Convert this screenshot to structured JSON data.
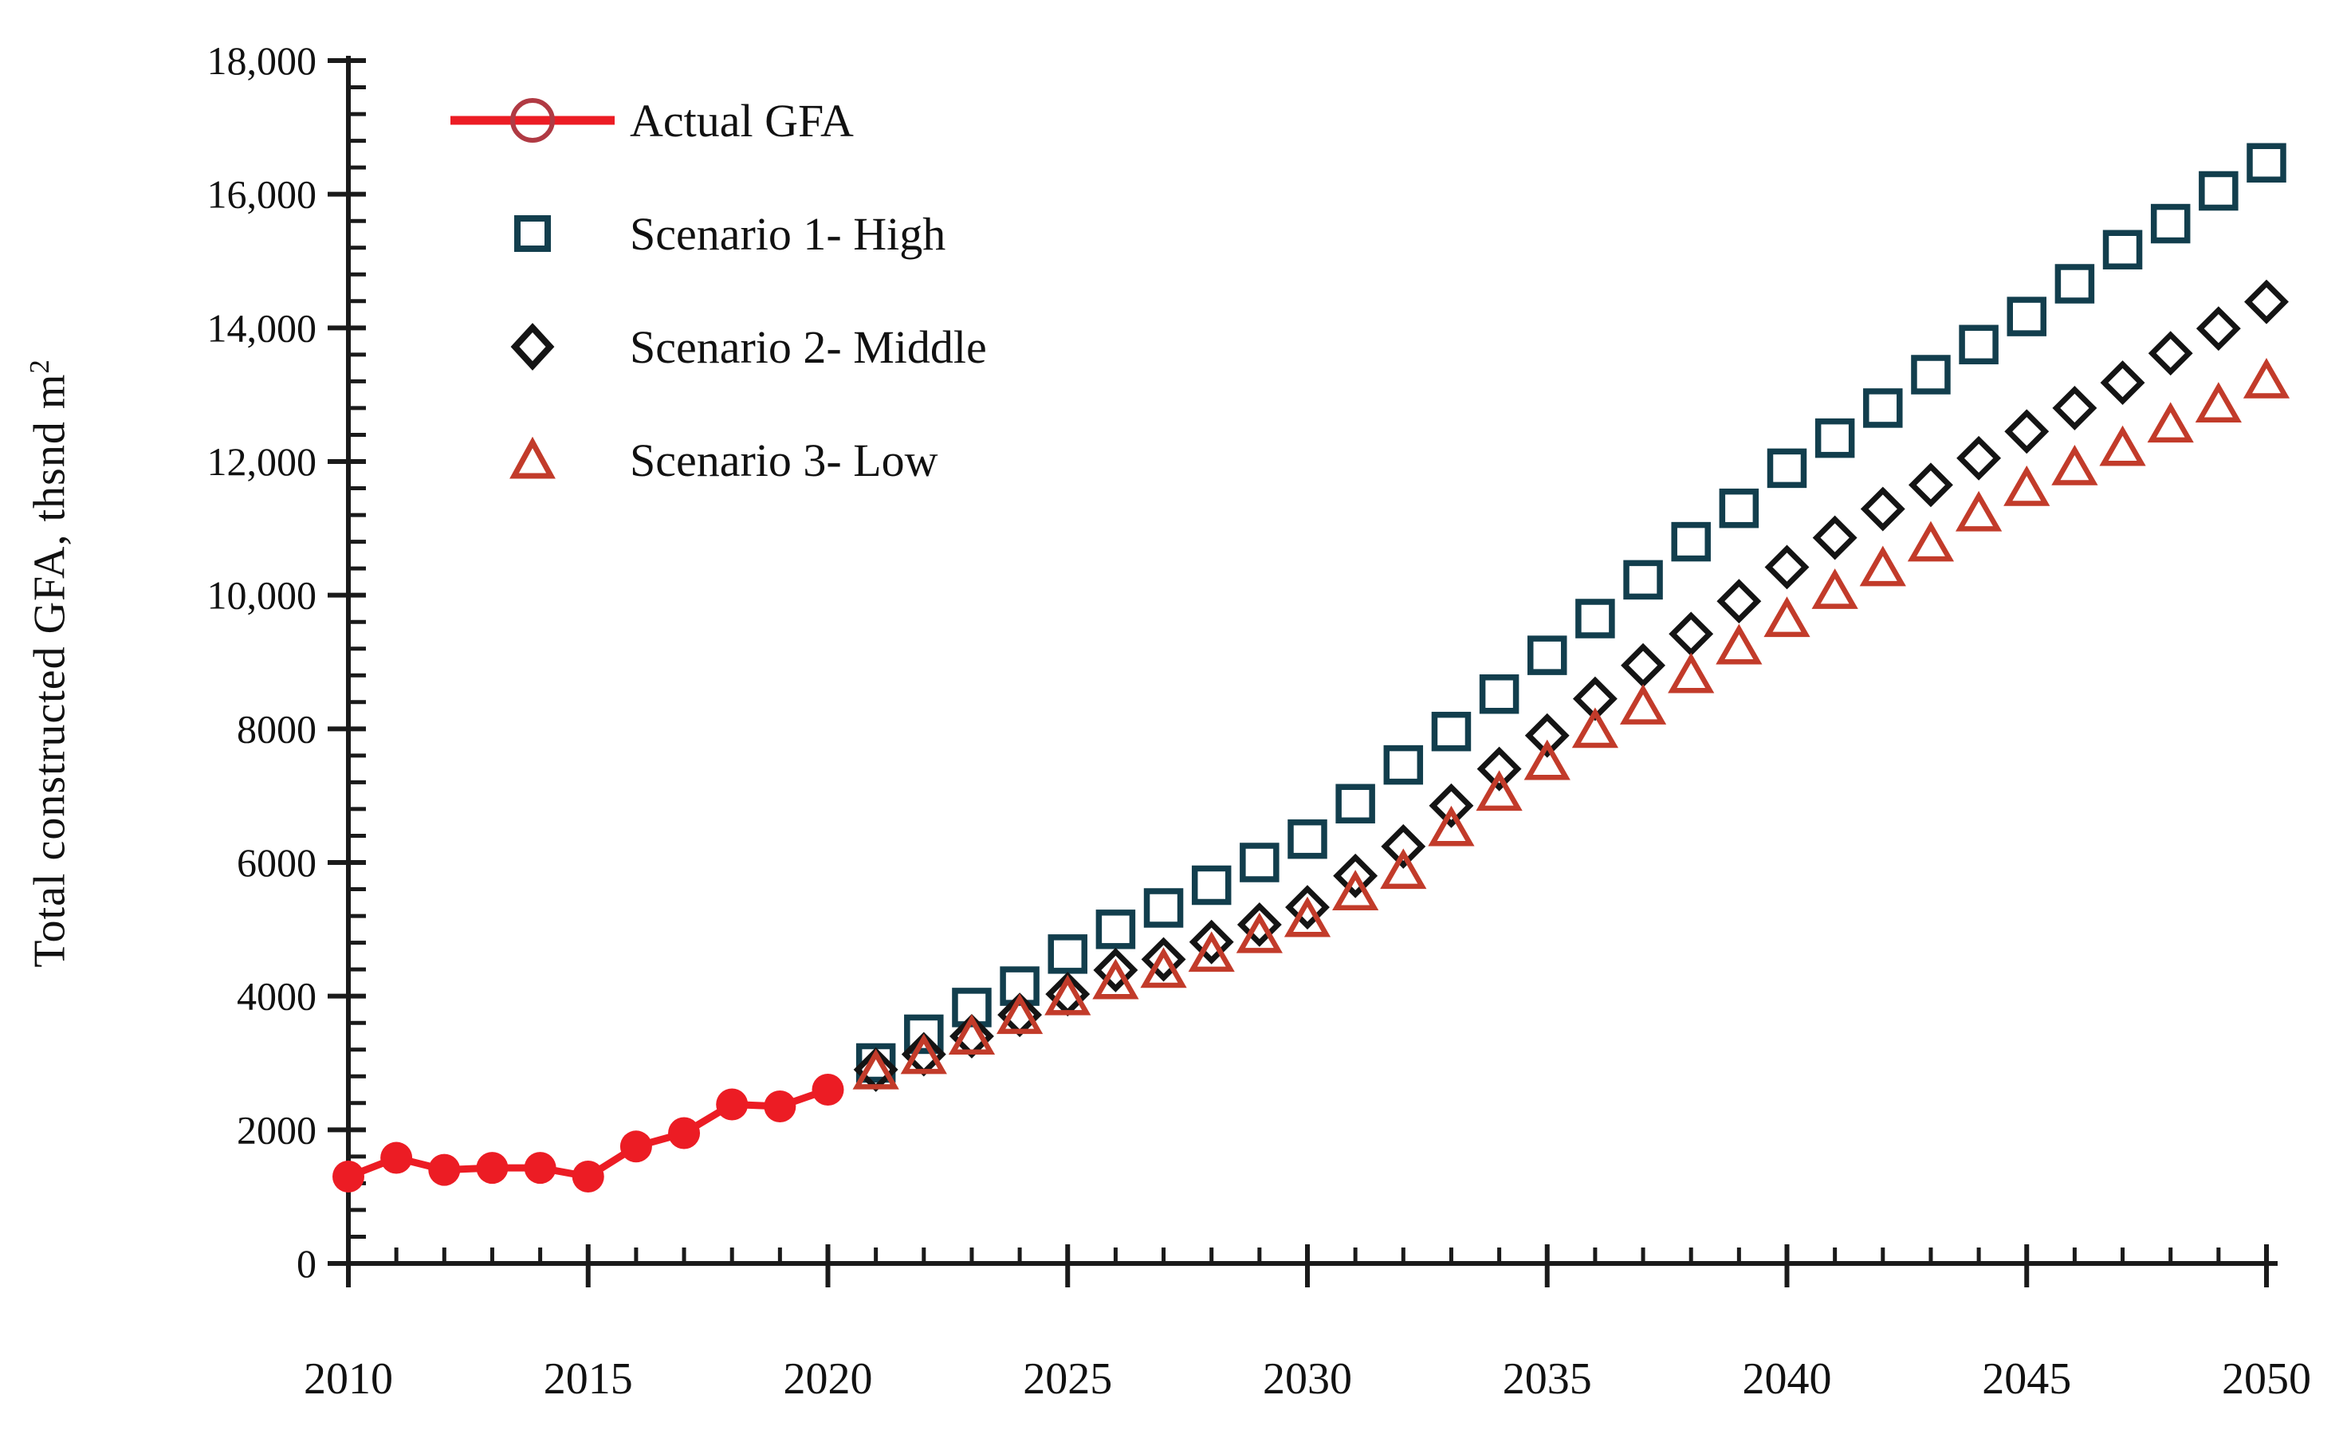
{
  "figure": {
    "ylabel_text": "Total constructed GFA, thsnd m",
    "ylabel_sup": "2",
    "background": "#ffffff",
    "legend": [
      {
        "label": "Actual GFA",
        "marker": "line-circle-icon",
        "color": "#ec1c24",
        "edge": "#b03a43"
      },
      {
        "label": "Scenario 1- High",
        "marker": "square-icon",
        "color": "#123e4d"
      },
      {
        "label": "Scenario 2- Middle",
        "marker": "diamond-icon",
        "color": "#141414"
      },
      {
        "label": "Scenario 3- Low",
        "marker": "triangle-icon",
        "color": "#c23b2a"
      }
    ]
  },
  "chart_data": {
    "type": "scatter",
    "title": "",
    "xlabel": "",
    "ylabel": "Total constructed GFA, thsnd m²",
    "xlim": [
      2010,
      2050
    ],
    "ylim": [
      0,
      18000
    ],
    "grid": false,
    "legend_position": "upper-left-inside",
    "x_major_ticks": [
      2010,
      2015,
      2020,
      2025,
      2030,
      2035,
      2040,
      2045,
      2050
    ],
    "x_major_labels": [
      "2010",
      "2015",
      "2020",
      "2025",
      "2030",
      "2035",
      "2040",
      "2045",
      "2050"
    ],
    "x_minor_step": 1,
    "y_major_ticks": [
      0,
      2000,
      4000,
      6000,
      8000,
      10000,
      12000,
      14000,
      16000,
      18000
    ],
    "y_major_labels": [
      "0",
      "2000",
      "4000",
      "6000",
      "8000",
      "10,000",
      "12,000",
      "14,000",
      "16,000",
      "18,000"
    ],
    "y_minor_step": 400,
    "series": [
      {
        "name": "Actual GFA",
        "type": "line+markers",
        "marker": "circle",
        "color": "#ec1c24",
        "x": [
          2010,
          2011,
          2012,
          2013,
          2014,
          2015,
          2016,
          2017,
          2018,
          2019,
          2020
        ],
        "values": [
          1300,
          1580,
          1400,
          1430,
          1430,
          1300,
          1750,
          1950,
          2380,
          2350,
          2600
        ]
      },
      {
        "name": "Scenario 1- High",
        "type": "markers",
        "marker": "square",
        "color": "#123e4d",
        "x": [
          2021,
          2022,
          2023,
          2024,
          2025,
          2026,
          2027,
          2028,
          2029,
          2030,
          2031,
          2032,
          2033,
          2034,
          2035,
          2036,
          2037,
          2038,
          2039,
          2040,
          2041,
          2042,
          2043,
          2044,
          2045,
          2046,
          2047,
          2048,
          2049,
          2050
        ],
        "values": [
          3000,
          3430,
          3830,
          4150,
          4630,
          5000,
          5320,
          5660,
          6000,
          6350,
          6880,
          7460,
          7960,
          8520,
          9100,
          9650,
          10230,
          10800,
          11300,
          11900,
          12350,
          12800,
          13300,
          13750,
          14170,
          14660,
          15170,
          15560,
          16050,
          16470
        ]
      },
      {
        "name": "Scenario 2- Middle",
        "type": "markers",
        "marker": "diamond",
        "color": "#141414",
        "x": [
          2021,
          2022,
          2023,
          2024,
          2025,
          2026,
          2027,
          2028,
          2029,
          2030,
          2031,
          2032,
          2033,
          2034,
          2035,
          2036,
          2037,
          2038,
          2039,
          2040,
          2041,
          2042,
          2043,
          2044,
          2045,
          2046,
          2047,
          2048,
          2049,
          2050
        ],
        "values": [
          2900,
          3130,
          3400,
          3720,
          4030,
          4390,
          4550,
          4810,
          5070,
          5330,
          5800,
          6240,
          6850,
          7400,
          7900,
          8450,
          8950,
          9420,
          9910,
          10420,
          10860,
          11290,
          11650,
          12050,
          12450,
          12800,
          13180,
          13620,
          13990,
          14390
        ]
      },
      {
        "name": "Scenario 3- Low",
        "type": "markers",
        "marker": "triangle",
        "color": "#c23b2a",
        "x": [
          2021,
          2022,
          2023,
          2024,
          2025,
          2026,
          2027,
          2028,
          2029,
          2030,
          2031,
          2032,
          2033,
          2034,
          2035,
          2036,
          2037,
          2038,
          2039,
          2040,
          2041,
          2042,
          2043,
          2044,
          2045,
          2046,
          2047,
          2048,
          2049,
          2050
        ],
        "values": [
          2870,
          3100,
          3390,
          3700,
          3980,
          4220,
          4390,
          4630,
          4910,
          5150,
          5550,
          5870,
          6510,
          7040,
          7500,
          7980,
          8330,
          8800,
          9230,
          9640,
          10060,
          10400,
          10770,
          11220,
          11600,
          11910,
          12200,
          12550,
          12850,
          13210
        ]
      }
    ]
  }
}
